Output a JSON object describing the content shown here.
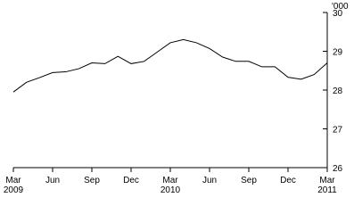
{
  "chart_data": {
    "type": "line",
    "y_unit_label": "'000",
    "categories": [
      "Mar 2009",
      null,
      null,
      "Jun",
      null,
      null,
      "Sep",
      null,
      null,
      "Dec",
      null,
      null,
      "Mar 2010",
      null,
      null,
      "Jun",
      null,
      null,
      "Sep",
      null,
      null,
      "Dec",
      null,
      null,
      "Mar 2011"
    ],
    "series": [
      {
        "color": "#000000",
        "values": [
          27.95,
          28.2,
          28.32,
          28.45,
          28.47,
          28.55,
          28.7,
          28.68,
          28.87,
          28.68,
          28.74,
          28.98,
          29.22,
          29.3,
          29.22,
          29.07,
          28.85,
          28.74,
          28.74,
          28.6,
          28.6,
          28.33,
          28.28,
          28.4,
          28.7
        ]
      }
    ],
    "ylim": [
      26,
      30
    ],
    "yticks": [
      26,
      27,
      28,
      29,
      30
    ],
    "grid": false
  }
}
